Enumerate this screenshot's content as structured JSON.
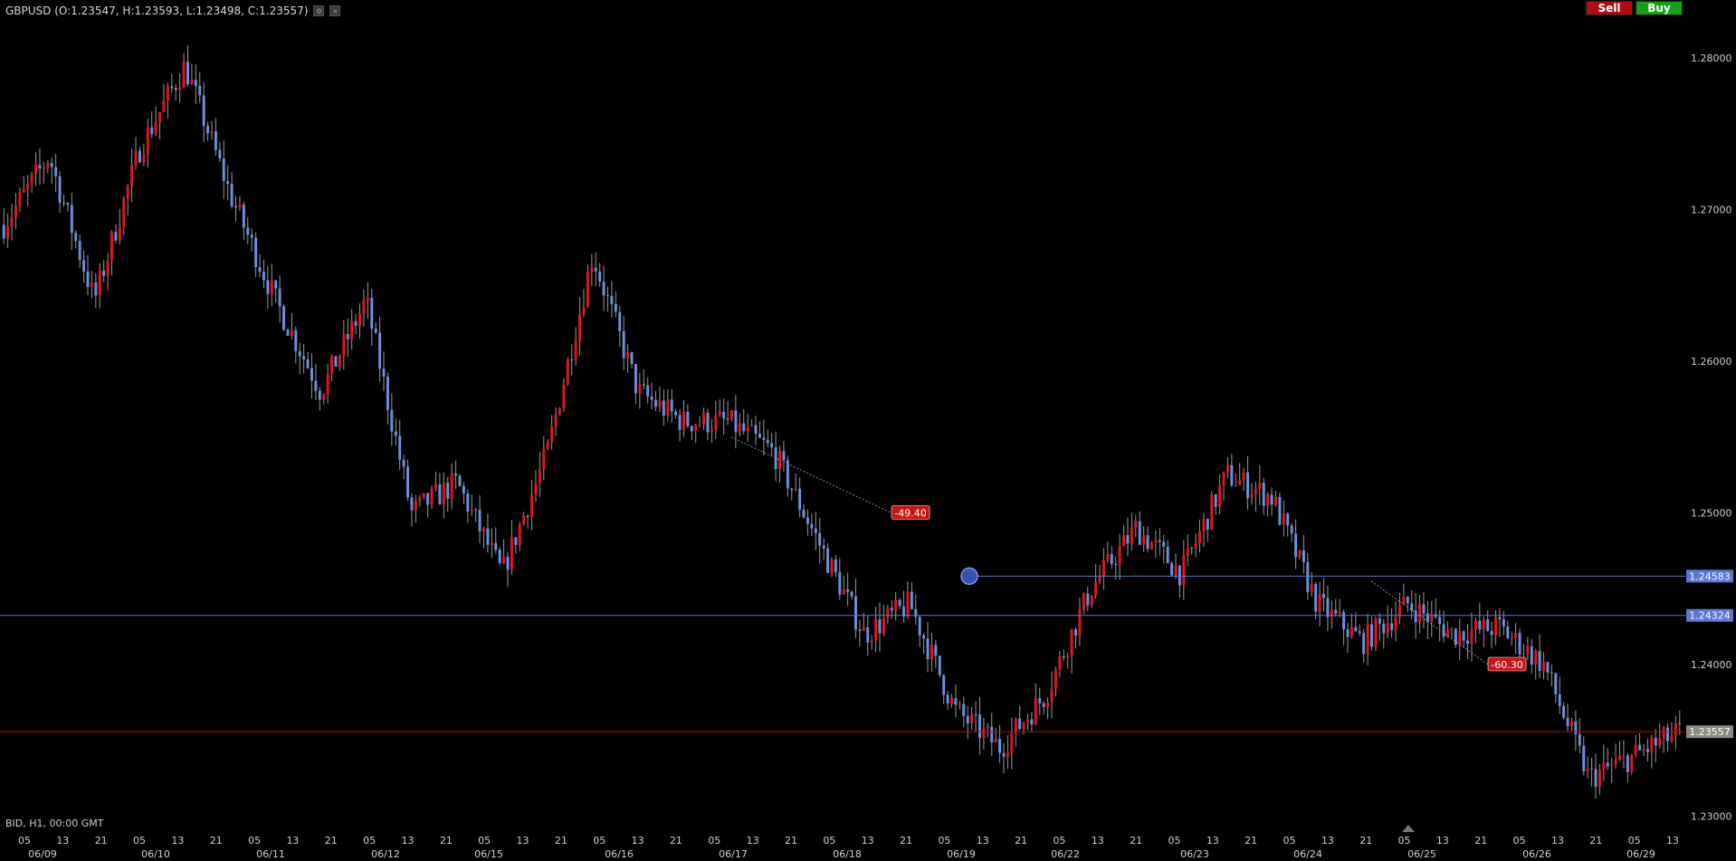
{
  "header": {
    "symbol_info": "GBPUSD (O:1.23547, H:1.23593, L:1.23498, C:1.23557)"
  },
  "buttons": {
    "sell": "Sell",
    "buy": "Buy"
  },
  "footer": {
    "info": "BID, H1, 00:00 GMT"
  },
  "price_axis": {
    "labels": [
      "1.28000",
      "1.27000",
      "1.26000",
      "1.25000",
      "1.24000",
      "1.23000"
    ]
  },
  "time_axis": {
    "hour_labels": [
      "05",
      "13",
      "21",
      "05",
      "13",
      "21",
      "05",
      "13",
      "21",
      "05",
      "13",
      "21",
      "05",
      "13",
      "21",
      "05",
      "13",
      "21",
      "05",
      "13",
      "21",
      "05",
      "13",
      "21",
      "05",
      "13",
      "21",
      "05",
      "13",
      "21",
      "05",
      "13",
      "21",
      "05",
      "13",
      "21",
      "05",
      "13",
      "21",
      "05",
      "13",
      "21",
      "05",
      "13"
    ],
    "date_labels": [
      "06/09",
      "06/10",
      "06/11",
      "06/12",
      "06/15",
      "06/16",
      "06/17",
      "06/18",
      "06/19",
      "06/22",
      "06/23",
      "06/24",
      "06/25",
      "06/26",
      "06/29"
    ]
  },
  "levels": [
    {
      "price": "1.24583",
      "color": "#5b78d6",
      "kind": "blue"
    },
    {
      "price": "1.24324",
      "color": "#5b78d6",
      "kind": "blue"
    },
    {
      "price": "1.23557",
      "color": "#b00e0e",
      "kind": "bid"
    }
  ],
  "annotations": [
    {
      "text": "-49.40",
      "color": "#c81414"
    },
    {
      "text": "-60.30",
      "color": "#c81414"
    }
  ],
  "colors": {
    "up": "#e0141e",
    "down": "#6a8fdc",
    "level_blue": "#5b78d6",
    "bid_line": "#b00e0e",
    "bid_tag": "#8a8a80"
  },
  "chart_data": {
    "type": "candlestick",
    "title": "GBPUSD",
    "timeframe": "H1",
    "ylim": [
      1.2295,
      1.2815
    ],
    "key_points": [
      {
        "date": "06/09",
        "price": 1.269
      },
      {
        "date": "06/09",
        "price": 1.2735
      },
      {
        "date": "06/09",
        "price": 1.264
      },
      {
        "date": "06/10",
        "price": 1.274
      },
      {
        "date": "06/10",
        "price": 1.2795
      },
      {
        "date": "06/11",
        "price": 1.271
      },
      {
        "date": "06/11",
        "price": 1.264
      },
      {
        "date": "06/12",
        "price": 1.258
      },
      {
        "date": "06/12",
        "price": 1.264
      },
      {
        "date": "06/15",
        "price": 1.25
      },
      {
        "date": "06/15",
        "price": 1.252
      },
      {
        "date": "06/15",
        "price": 1.246
      },
      {
        "date": "06/16",
        "price": 1.254
      },
      {
        "date": "06/16",
        "price": 1.267
      },
      {
        "date": "06/17",
        "price": 1.258
      },
      {
        "date": "06/17",
        "price": 1.256
      },
      {
        "date": "06/18",
        "price": 1.256
      },
      {
        "date": "06/18",
        "price": 1.254
      },
      {
        "date": "06/18",
        "price": 1.248
      },
      {
        "date": "06/19",
        "price": 1.242
      },
      {
        "date": "06/19",
        "price": 1.244
      },
      {
        "date": "06/22",
        "price": 1.237
      },
      {
        "date": "06/22",
        "price": 1.2345
      },
      {
        "date": "06/22",
        "price": 1.238
      },
      {
        "date": "06/23",
        "price": 1.245
      },
      {
        "date": "06/23",
        "price": 1.249
      },
      {
        "date": "06/23",
        "price": 1.246
      },
      {
        "date": "06/24",
        "price": 1.2525
      },
      {
        "date": "06/24",
        "price": 1.251
      },
      {
        "date": "06/24",
        "price": 1.244
      },
      {
        "date": "06/25",
        "price": 1.2415
      },
      {
        "date": "06/25",
        "price": 1.244
      },
      {
        "date": "06/26",
        "price": 1.242
      },
      {
        "date": "06/26",
        "price": 1.2425
      },
      {
        "date": "06/26",
        "price": 1.24
      },
      {
        "date": "06/29",
        "price": 1.2325
      },
      {
        "date": "06/29",
        "price": 1.234
      },
      {
        "date": "06/29",
        "price": 1.23557
      }
    ],
    "horizontal_lines": [
      1.24583,
      1.24324,
      1.23557
    ],
    "trend_annotations": [
      {
        "from_price": 1.255,
        "to_price": 1.25,
        "label": "-49.40"
      },
      {
        "from_price": 1.2455,
        "to_price": 1.24,
        "label": "-60.30"
      }
    ]
  }
}
